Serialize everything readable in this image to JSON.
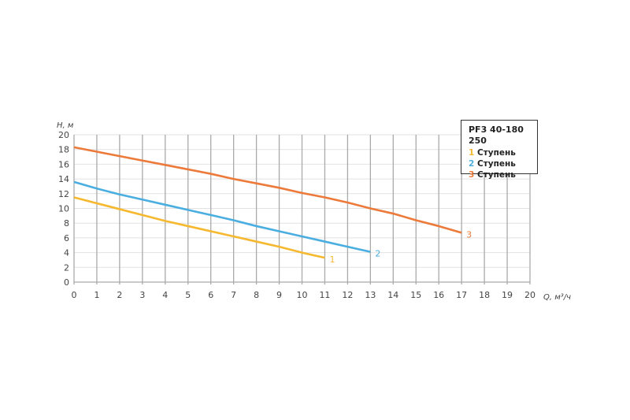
{
  "chart_data": {
    "type": "line",
    "title": "PF3 40-180 250",
    "xlabel": "Q, м³/ч",
    "ylabel": "H, м",
    "xlim": [
      0,
      20
    ],
    "ylim": [
      0,
      20
    ],
    "x_ticks": [
      0,
      1,
      2,
      3,
      4,
      5,
      6,
      7,
      8,
      9,
      10,
      11,
      12,
      13,
      14,
      15,
      16,
      17,
      18,
      19,
      20
    ],
    "y_ticks": [
      0,
      2,
      4,
      6,
      8,
      10,
      12,
      14,
      16,
      18,
      20
    ],
    "grid": true,
    "legend_position": "top-right",
    "series": [
      {
        "name": "1",
        "label": "Ступень",
        "end_label": "1",
        "color": "#f5b82e",
        "x": [
          0,
          1,
          2,
          3,
          4,
          5,
          6,
          7,
          8,
          9,
          10,
          11
        ],
        "y": [
          11.5,
          10.7,
          9.9,
          9.1,
          8.3,
          7.6,
          6.9,
          6.2,
          5.5,
          4.8,
          4.0,
          3.3
        ]
      },
      {
        "name": "2",
        "label": "Ступень",
        "end_label": "2",
        "color": "#4aaee0",
        "x": [
          0,
          1,
          2,
          3,
          4,
          5,
          6,
          7,
          8,
          9,
          10,
          11,
          12,
          13
        ],
        "y": [
          13.6,
          12.7,
          11.9,
          11.2,
          10.5,
          9.8,
          9.1,
          8.4,
          7.6,
          6.9,
          6.2,
          5.5,
          4.8,
          4.1
        ]
      },
      {
        "name": "3",
        "label": "Ступень",
        "end_label": "3",
        "color": "#ec7a3a",
        "x": [
          0,
          1,
          2,
          3,
          4,
          5,
          6,
          7,
          8,
          9,
          10,
          11,
          12,
          13,
          14,
          15,
          16,
          17
        ],
        "y": [
          18.3,
          17.7,
          17.1,
          16.5,
          15.9,
          15.3,
          14.7,
          14.0,
          13.4,
          12.8,
          12.1,
          11.5,
          10.8,
          10.0,
          9.3,
          8.4,
          7.6,
          6.7
        ]
      }
    ]
  }
}
